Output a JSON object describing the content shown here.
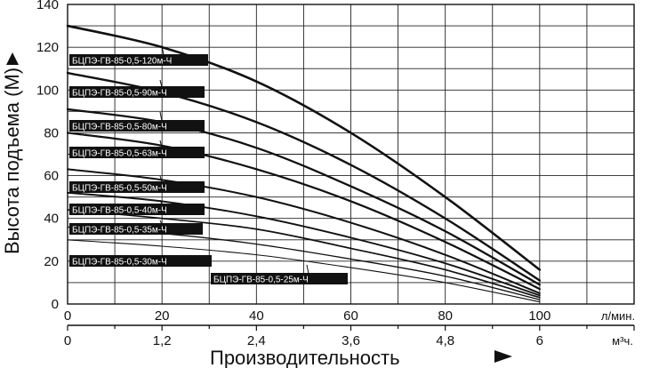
{
  "chart_data": {
    "type": "line",
    "title": "",
    "xlabel": "Производительность",
    "ylabel": "Высота подъема (М)",
    "xunit_primary": "л/мин.",
    "xunit_secondary": "м³ч.",
    "xlim": [
      0,
      120
    ],
    "ylim": [
      0,
      140
    ],
    "grid": true,
    "y_ticks": [
      "0",
      "20",
      "40",
      "60",
      "80",
      "100",
      "120",
      "140"
    ],
    "x_ticks_primary": [
      "0",
      "20",
      "40",
      "60",
      "80",
      "100"
    ],
    "x_ticks_secondary": [
      "0",
      "1,2",
      "2,4",
      "3,6",
      "4,8",
      "6"
    ],
    "x": [
      0,
      20,
      40,
      60,
      80,
      100
    ],
    "series": [
      {
        "name": "БЦПЭ-ГВ-85-0,5-120м-Ч",
        "values": [
          130,
          120,
          104,
          80,
          50,
          16
        ]
      },
      {
        "name": "БЦПЭ-ГВ-85-0,5-90м-Ч",
        "values": [
          108,
          99,
          85,
          65,
          40,
          11
        ]
      },
      {
        "name": "БЦПЭ-ГВ-85-0,5-80м-Ч",
        "values": [
          91,
          85,
          73,
          55,
          34,
          9
        ]
      },
      {
        "name": "БЦПЭ-ГВ-85-0,5-63м-Ч",
        "values": [
          80,
          74,
          63,
          48,
          29,
          7
        ]
      },
      {
        "name": "БЦПЭ-ГВ-85-0,5-50м-Ч",
        "values": [
          63,
          58,
          50,
          38,
          23,
          5
        ]
      },
      {
        "name": "БЦПЭ-ГВ-85-0,5-40м-Ч",
        "values": [
          52,
          48,
          41,
          31,
          19,
          4
        ]
      },
      {
        "name": "БЦПЭ-ГВ-85-0,5-35м-Ч",
        "values": [
          44,
          40,
          35,
          26,
          16,
          3
        ]
      },
      {
        "name": "БЦПЭ-ГВ-85-0,5-30м-Ч",
        "values": [
          36,
          33,
          28,
          21,
          13,
          2
        ]
      },
      {
        "name": "БЦПЭ-ГВ-85-0,5-25м-Ч",
        "values": [
          30,
          27,
          23,
          17,
          10,
          1
        ]
      }
    ],
    "series_color": "#111111"
  }
}
